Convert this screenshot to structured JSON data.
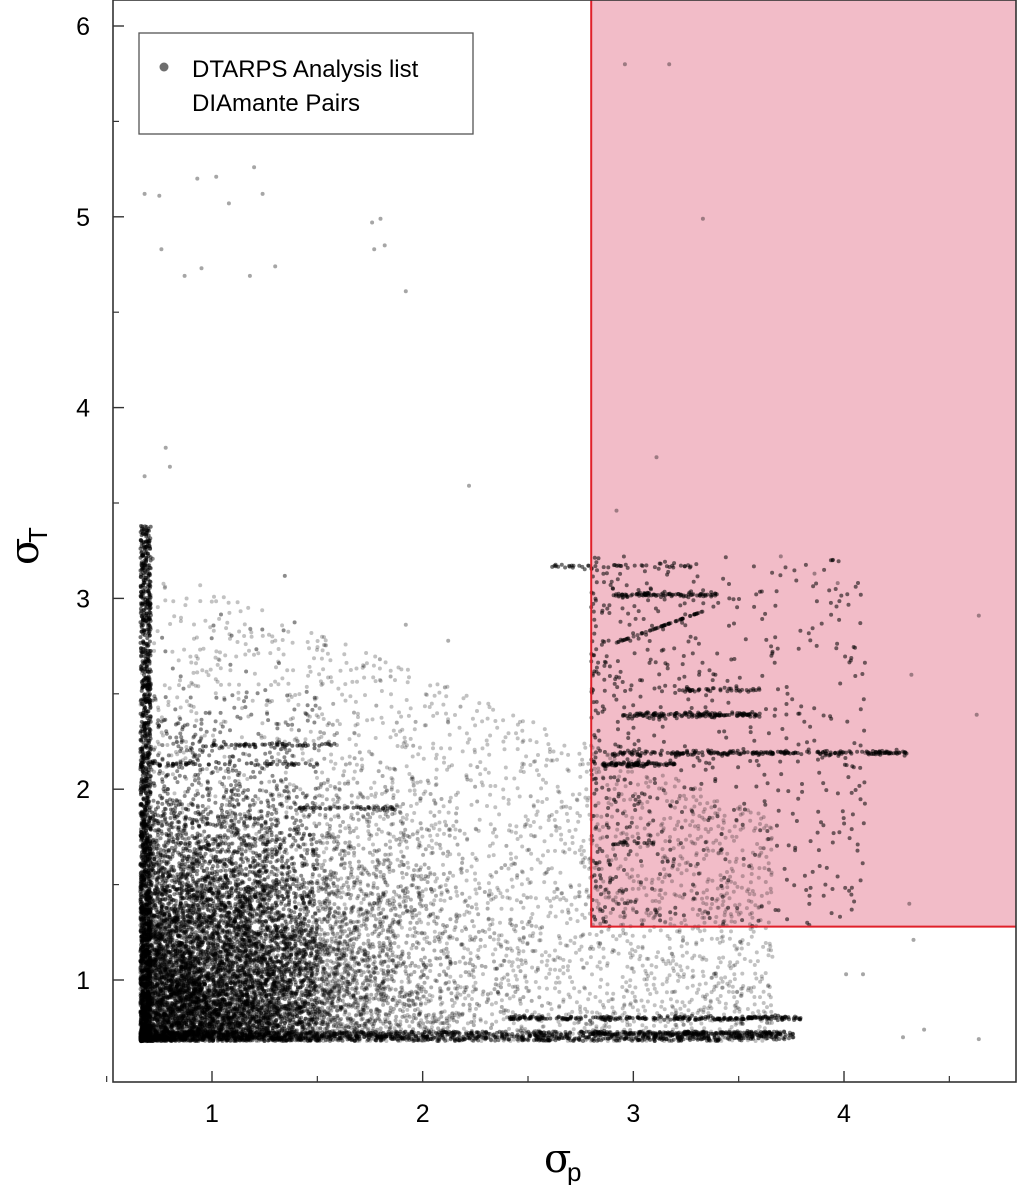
{
  "chart_data": {
    "type": "scatter",
    "xlabel": "σ",
    "xlabel_sub": "p",
    "ylabel": "σ",
    "ylabel_sub": "T",
    "xlim": [
      0.45,
      4.82
    ],
    "ylim": [
      0.5,
      6.12
    ],
    "x_ticks": [
      1,
      2,
      3,
      4
    ],
    "x_tick_labels": [
      "1",
      "2",
      "3",
      "4"
    ],
    "x_minor_ticks": [
      0.5,
      1.5,
      2.5,
      3.5,
      4.5
    ],
    "y_ticks": [
      1,
      2,
      3,
      4,
      5,
      6
    ],
    "y_tick_labels": [
      "1",
      "2",
      "3",
      "4",
      "5",
      "6"
    ],
    "y_minor_ticks": [
      1.5,
      2.5,
      3.5,
      4.5,
      5.5
    ],
    "grid": false,
    "legend": {
      "placement": "top-left",
      "entries": [
        "DTARPS Analysis list",
        "DIAmante Pairs"
      ],
      "marker_color": "#6e6e6e"
    },
    "region": {
      "x_min": 2.8,
      "y_min": 1.28,
      "fill_color": "#f2bcc8",
      "edge_color": "#e0202a"
    },
    "point_color": "#000000",
    "density_notes": "Dense cluster near sigma_p 0.7-1.8, sigma_T 0.7-2.2; thins toward larger sigma_p; horizontal streaks near sigma_T 0.8, 2.2, 2.4, 3.0",
    "sample_points": [
      {
        "x": 0.75,
        "y": 5.11
      },
      {
        "x": 0.93,
        "y": 5.2
      },
      {
        "x": 1.02,
        "y": 5.21
      },
      {
        "x": 1.08,
        "y": 5.07
      },
      {
        "x": 1.2,
        "y": 5.26
      },
      {
        "x": 1.24,
        "y": 5.12
      },
      {
        "x": 0.68,
        "y": 5.12
      },
      {
        "x": 0.76,
        "y": 4.83
      },
      {
        "x": 0.87,
        "y": 4.69
      },
      {
        "x": 0.95,
        "y": 4.73
      },
      {
        "x": 1.18,
        "y": 4.69
      },
      {
        "x": 1.3,
        "y": 4.74
      },
      {
        "x": 1.76,
        "y": 4.97
      },
      {
        "x": 1.8,
        "y": 4.99
      },
      {
        "x": 1.77,
        "y": 4.83
      },
      {
        "x": 1.82,
        "y": 4.85
      },
      {
        "x": 1.92,
        "y": 4.61
      },
      {
        "x": 2.96,
        "y": 5.8
      },
      {
        "x": 3.17,
        "y": 5.8
      },
      {
        "x": 3.33,
        "y": 4.99
      },
      {
        "x": 0.78,
        "y": 3.79
      },
      {
        "x": 0.8,
        "y": 3.69
      },
      {
        "x": 0.68,
        "y": 3.64
      },
      {
        "x": 3.11,
        "y": 3.74
      },
      {
        "x": 2.22,
        "y": 3.59
      },
      {
        "x": 2.92,
        "y": 3.46
      },
      {
        "x": 4.64,
        "y": 2.91
      },
      {
        "x": 4.63,
        "y": 2.39
      },
      {
        "x": 4.32,
        "y": 2.6
      },
      {
        "x": 4.31,
        "y": 1.4
      },
      {
        "x": 4.33,
        "y": 1.21
      },
      {
        "x": 4.64,
        "y": 0.69
      },
      {
        "x": 4.38,
        "y": 0.74
      },
      {
        "x": 4.28,
        "y": 0.7
      },
      {
        "x": 4.01,
        "y": 1.03
      },
      {
        "x": 4.09,
        "y": 1.03
      },
      {
        "x": 3.7,
        "y": 3.22
      },
      {
        "x": 3.86,
        "y": 3.13
      },
      {
        "x": 3.97,
        "y": 3.08
      },
      {
        "x": 4.1,
        "y": 2.19
      }
    ]
  }
}
